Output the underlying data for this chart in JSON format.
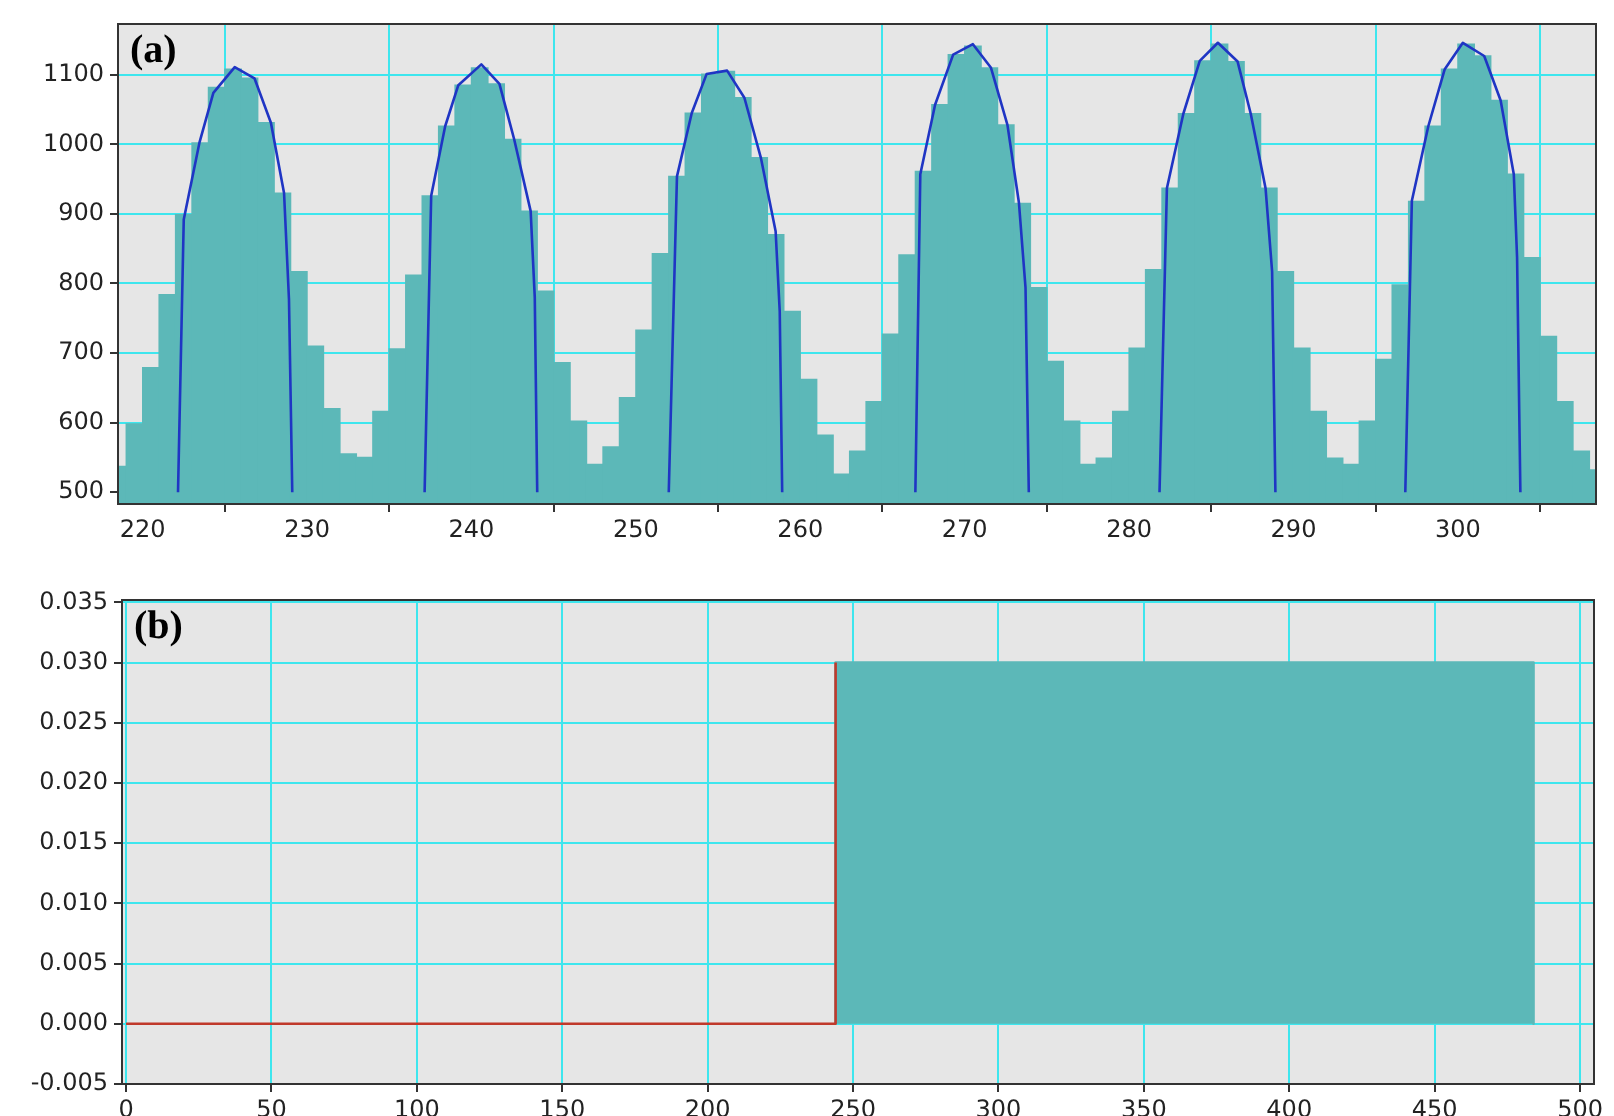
{
  "chart_data": [
    {
      "type": "histogram",
      "annotations": [
        "(a)"
      ],
      "color": "#5cb8b8",
      "grid": true,
      "marker": "none",
      "line_style": "solid",
      "bins": [
        218,
        219,
        220,
        221,
        222,
        223,
        224,
        225,
        226,
        227,
        228,
        229,
        230,
        231,
        232,
        233,
        234,
        235,
        236,
        237,
        238,
        239,
        240,
        241,
        242,
        243,
        244,
        245,
        246,
        247,
        248,
        249,
        250,
        251,
        252,
        253,
        254,
        255,
        256,
        257,
        258,
        259,
        260,
        261,
        262,
        263,
        264,
        265,
        266,
        267,
        268,
        269,
        270,
        271,
        272,
        273,
        274,
        275,
        276,
        277,
        278,
        279,
        280,
        281,
        282,
        283,
        284,
        285,
        286,
        287,
        288,
        289,
        290,
        291,
        292,
        293,
        294,
        295,
        296,
        297,
        298,
        299,
        300,
        301,
        302,
        303,
        304,
        305,
        306,
        307,
        308,
        309
      ],
      "values": [
        537,
        598,
        679,
        784,
        899,
        1002,
        1082,
        1108,
        1095,
        1031,
        930,
        817,
        710,
        620,
        555,
        550,
        616,
        706,
        812,
        926,
        1026,
        1085,
        1110,
        1087,
        1007,
        904,
        789,
        686,
        602,
        540,
        565,
        636,
        733,
        843,
        954,
        1045,
        1101,
        1105,
        1067,
        981,
        870,
        760,
        662,
        582,
        526,
        559,
        630,
        727,
        841,
        961,
        1057,
        1129,
        1141,
        1110,
        1028,
        915,
        794,
        688,
        602,
        540,
        549,
        616,
        707,
        820,
        937,
        1044,
        1120,
        1144,
        1119,
        1044,
        937,
        817,
        707,
        616,
        549,
        540,
        602,
        691,
        798,
        918,
        1026,
        1108,
        1144,
        1127,
        1063,
        957,
        837,
        724,
        630,
        559,
        532
      ],
      "series": [
        {
          "type": "line",
          "color": "#1f35c4",
          "x": [
            222.15,
            222.5,
            223.45,
            224.3,
            225.6,
            226.8,
            227.8,
            228.6,
            228.9,
            229.1
          ],
          "values": [
            500,
            892,
            1002,
            1074,
            1111,
            1095,
            1031,
            930,
            777,
            500
          ]
        },
        {
          "type": "line",
          "color": "#1f35c4",
          "x": [
            237.15,
            237.55,
            238.4,
            239.2,
            240.6,
            241.7,
            242.6,
            243.6,
            243.85,
            244.0
          ],
          "values": [
            500,
            926,
            1026,
            1085,
            1115,
            1087,
            1007,
            904,
            780,
            500
          ]
        },
        {
          "type": "line",
          "color": "#1f35c4",
          "x": [
            252.0,
            252.5,
            253.4,
            254.3,
            255.55,
            256.6,
            257.6,
            258.5,
            258.75,
            258.9
          ],
          "values": [
            500,
            954,
            1045,
            1101,
            1106,
            1067,
            981,
            875,
            760,
            500
          ]
        },
        {
          "type": "line",
          "color": "#1f35c4",
          "x": [
            267.0,
            267.3,
            268.2,
            269.3,
            270.5,
            271.6,
            272.6,
            273.3,
            273.7,
            273.9
          ],
          "values": [
            500,
            957,
            1057,
            1129,
            1144,
            1110,
            1028,
            916,
            794,
            500
          ]
        },
        {
          "type": "line",
          "color": "#1f35c4",
          "x": [
            281.85,
            282.3,
            283.3,
            284.3,
            285.4,
            286.6,
            287.4,
            288.3,
            288.7,
            288.9
          ],
          "values": [
            500,
            937,
            1044,
            1120,
            1146,
            1119,
            1044,
            937,
            817,
            500
          ]
        },
        {
          "type": "line",
          "color": "#1f35c4",
          "x": [
            296.8,
            297.2,
            298.2,
            299.2,
            300.3,
            301.6,
            302.6,
            303.4,
            303.6,
            303.8
          ],
          "values": [
            500,
            919,
            1026,
            1108,
            1146,
            1127,
            1063,
            957,
            837,
            500
          ]
        }
      ],
      "xlim": [
        218.5,
        308.4
      ],
      "xticks": [
        220,
        230,
        240,
        250,
        260,
        270,
        280,
        290,
        300
      ],
      "ylim": [
        483,
        1173
      ],
      "yticks": [
        500,
        600,
        700,
        800,
        900,
        1000,
        1100
      ]
    },
    {
      "type": "area",
      "annotations": [
        "(b)"
      ],
      "grid": true,
      "marker": "none",
      "line_style": "solid",
      "series": [
        {
          "type": "line",
          "color": "#c0392b",
          "x": [
            0,
            244,
            244
          ],
          "values": [
            0,
            0,
            0.03
          ]
        },
        {
          "type": "area",
          "color": "#5cb8b8",
          "x": [
            244,
            244,
            484,
            484
          ],
          "values": [
            0,
            0.03,
            0.03,
            0
          ]
        }
      ],
      "xlim": [
        -1.4,
        504.8
      ],
      "xticks": [
        0,
        50,
        100,
        150,
        200,
        250,
        300,
        350,
        400,
        450,
        500
      ],
      "ylim": [
        -0.005,
        0.0352
      ],
      "yticks": [
        {
          "value": -0.005,
          "label": "-0.005"
        },
        {
          "value": 0,
          "label": "0.000"
        },
        {
          "value": 0.005,
          "label": "0.005"
        },
        {
          "value": 0.01,
          "label": "0.010"
        },
        {
          "value": 0.015,
          "label": "0.015"
        },
        {
          "value": 0.02,
          "label": "0.020"
        },
        {
          "value": 0.025,
          "label": "0.025"
        },
        {
          "value": 0.03,
          "label": "0.030"
        },
        {
          "value": 0.035,
          "label": "0.035"
        }
      ]
    }
  ]
}
